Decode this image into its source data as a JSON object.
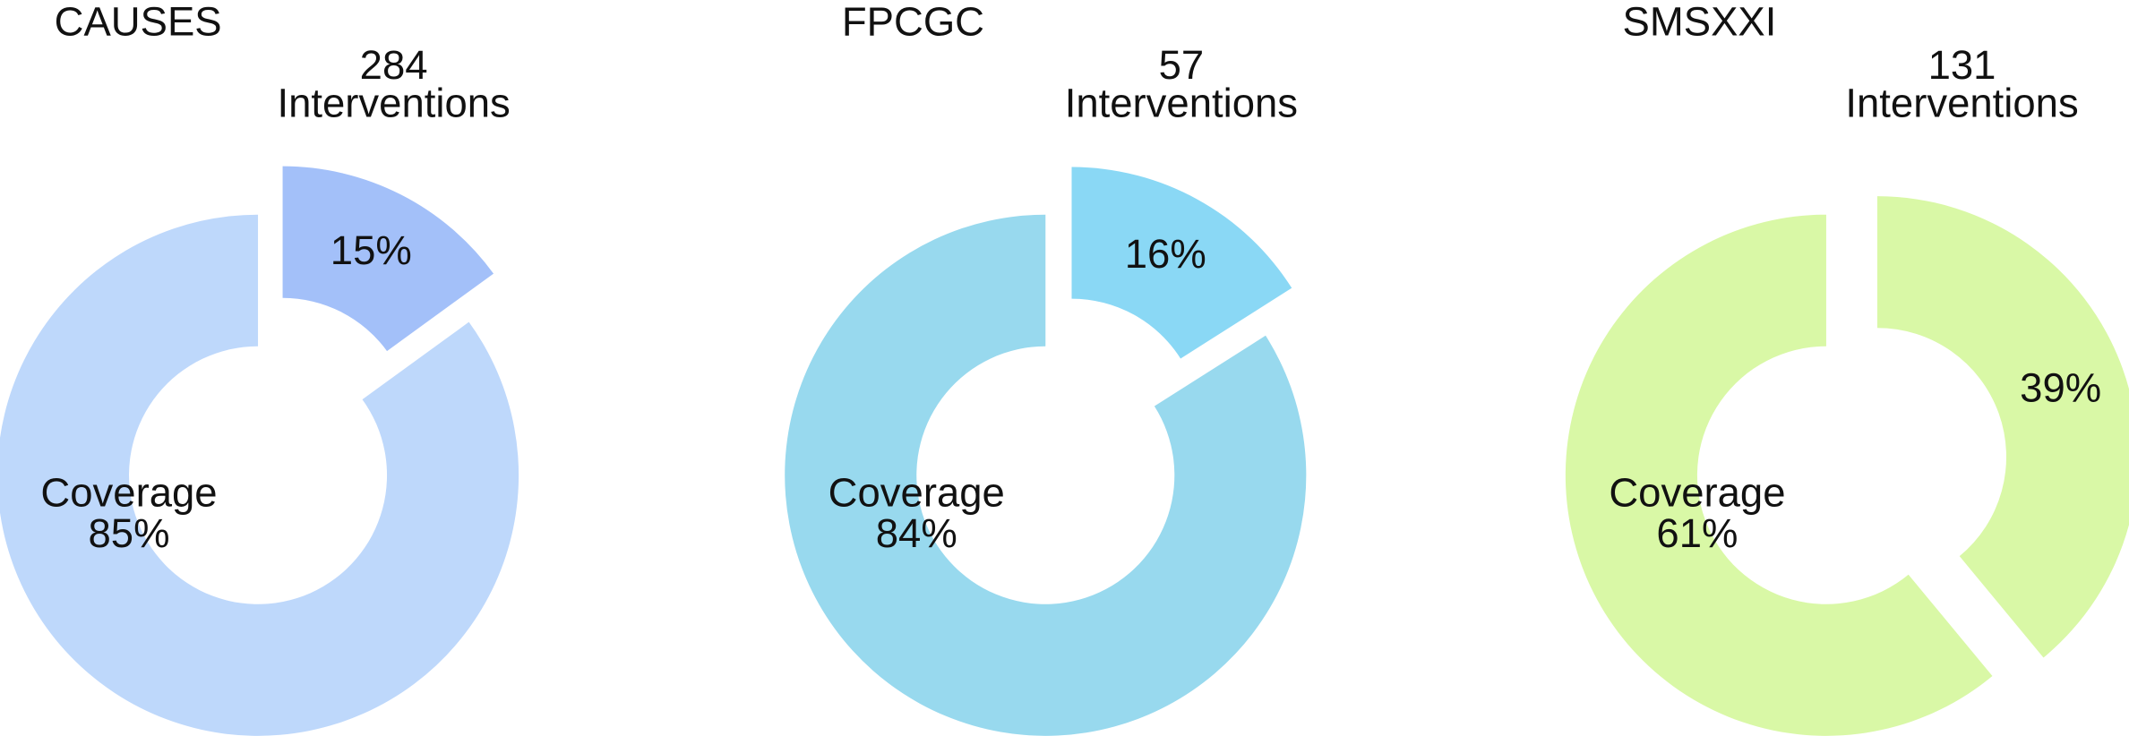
{
  "chart_data": [
    {
      "type": "donut",
      "title": "CAUSES",
      "count": 284,
      "count_label": "Interventions",
      "categories": [
        null,
        "Coverage"
      ],
      "values": [
        15,
        85
      ],
      "value_labels": [
        "15%",
        "85%"
      ],
      "colors": [
        "#a3c0f9",
        "#bed8fb"
      ],
      "exploded": 0
    },
    {
      "type": "donut",
      "title": "FPCGC",
      "count": 57,
      "count_label": "Interventions",
      "categories": [
        null,
        "Coverage"
      ],
      "values": [
        16,
        84
      ],
      "value_labels": [
        "16%",
        "84%"
      ],
      "colors": [
        "#8ad8f5",
        "#98d9ee"
      ],
      "exploded": 0
    },
    {
      "type": "donut",
      "title": "SMSXXI",
      "count": 131,
      "count_label": "Interventions",
      "categories": [
        null,
        "Coverage"
      ],
      "values": [
        39,
        61
      ],
      "value_labels": [
        "39%",
        "61%"
      ],
      "colors": [
        "#d9f8a6",
        "#d9f8a6"
      ],
      "exploded": 0
    }
  ]
}
